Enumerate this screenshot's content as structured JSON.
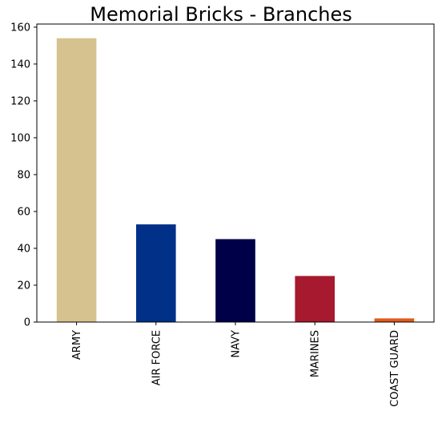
{
  "chart_data": {
    "type": "bar",
    "title": "Memorial Bricks - Branches",
    "xlabel": "",
    "ylabel": "",
    "categories": [
      "ARMY",
      "AIR FORCE",
      "NAVY",
      "MARINES",
      "COAST GUARD"
    ],
    "values": [
      154,
      53,
      45,
      25,
      2
    ],
    "colors": [
      "#D5C28F",
      "#003087",
      "#000048",
      "#A6192E",
      "#E25A1C"
    ],
    "ylim": [
      0,
      161.7
    ],
    "yticks": [
      0,
      20,
      40,
      60,
      80,
      100,
      120,
      140,
      160
    ],
    "grid": false,
    "legend": "none"
  }
}
